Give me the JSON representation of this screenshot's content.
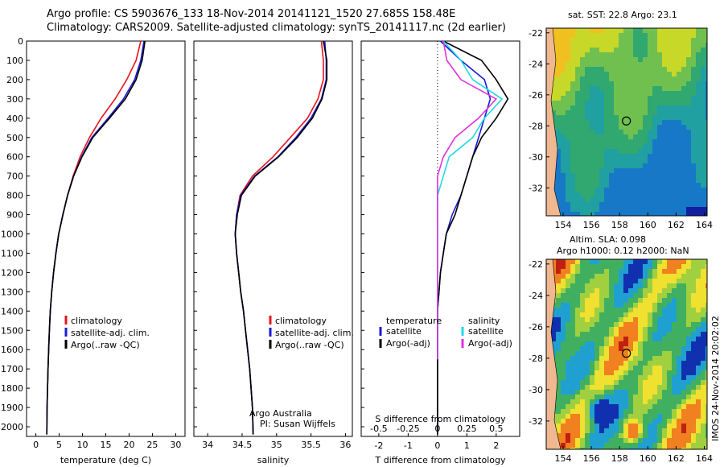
{
  "header": {
    "title_line1": "Argo profile: CS 5903676_133 18-Nov-2014 20141121_1520 27.685S 158.48E",
    "title_line2": "Climatology: CARS2009. Satellite-adjusted climatology: synTS_20141117.nc (2d earlier)"
  },
  "credit": {
    "line1": "Argo Australia",
    "line2": "PI: Susan Wijffels"
  },
  "stamp": "IMOS 24-Nov-2014 20:02:02",
  "colors": {
    "climatology": "#e8141c",
    "satellite": "#1a1ad8",
    "argo": "#000000",
    "salinity_satellite": "#20d8e8",
    "salinity_argo": "#e030e0"
  },
  "chart_data": [
    {
      "type": "line",
      "xlabel": "temperature (deg C)",
      "ylabel": "",
      "xlim": [
        -2,
        32
      ],
      "ylim": [
        2050,
        0
      ],
      "xticks": [
        "0",
        "5",
        "10",
        "15",
        "20",
        "25",
        "30"
      ],
      "yticks": [
        "0",
        "100",
        "200",
        "300",
        "400",
        "500",
        "600",
        "700",
        "800",
        "900",
        "1000",
        "1100",
        "1200",
        "1300",
        "1400",
        "1500",
        "1600",
        "1700",
        "1800",
        "1900",
        "2000"
      ],
      "legend": {
        "placement": "lower-middle",
        "entries": [
          "climatology",
          "satellite-adj. clim.",
          "Argo(..raw -QC)"
        ]
      },
      "series": [
        {
          "name": "climatology",
          "color": "#e8141c",
          "x": [
            22.5,
            21.5,
            19.5,
            17,
            14,
            11.5,
            9.5,
            8,
            6.8,
            5.8,
            4.9,
            4.3,
            3.8,
            3.4,
            3.1,
            2.9,
            2.75,
            2.6,
            2.5,
            2.4,
            2.35
          ],
          "y": [
            0,
            100,
            200,
            300,
            400,
            500,
            600,
            700,
            800,
            900,
            1000,
            1100,
            1200,
            1300,
            1400,
            1500,
            1600,
            1700,
            1800,
            1900,
            2040
          ]
        },
        {
          "name": "satellite-adj. clim.",
          "color": "#1a1ad8",
          "x": [
            23.2,
            22.5,
            21.2,
            18.8,
            15.5,
            12,
            9.8,
            8.1,
            6.8,
            5.8,
            4.9,
            4.3,
            3.8,
            3.4,
            3.1,
            2.9,
            2.75,
            2.6,
            2.5,
            2.4,
            2.35
          ],
          "y": [
            0,
            100,
            200,
            300,
            400,
            500,
            600,
            700,
            800,
            900,
            1000,
            1100,
            1200,
            1300,
            1400,
            1500,
            1600,
            1700,
            1800,
            1900,
            2040
          ]
        },
        {
          "name": "Argo(..raw -QC)",
          "color": "#000000",
          "x": [
            23.4,
            22.8,
            21.5,
            19.2,
            15.8,
            12.2,
            9.9,
            8.1,
            6.8,
            5.8,
            4.9,
            4.3,
            3.8,
            3.4,
            3.1,
            2.9,
            2.75,
            2.6,
            2.5,
            2.4,
            2.35
          ],
          "y": [
            0,
            100,
            200,
            300,
            400,
            500,
            600,
            700,
            800,
            900,
            1000,
            1100,
            1200,
            1300,
            1400,
            1500,
            1600,
            1700,
            1800,
            1900,
            2040
          ]
        }
      ]
    },
    {
      "type": "line",
      "xlabel": "salinity",
      "ylabel": "",
      "xlim": [
        33.8,
        36.1
      ],
      "ylim": [
        2050,
        0
      ],
      "xticks": [
        "34",
        "34.5",
        "35",
        "35.5",
        "36"
      ],
      "legend": {
        "placement": "lower-middle",
        "entries": [
          "climatology",
          "satellite-adj. clim.",
          "Argo(..raw -QC)"
        ]
      },
      "series": [
        {
          "name": "climatology",
          "color": "#e8141c",
          "x": [
            35.65,
            35.68,
            35.68,
            35.6,
            35.45,
            35.2,
            34.95,
            34.65,
            34.47,
            34.42,
            34.4,
            34.42,
            34.45,
            34.48,
            34.52,
            34.55,
            34.58,
            34.61,
            34.63,
            34.65,
            34.66
          ],
          "y": [
            0,
            100,
            200,
            300,
            400,
            500,
            600,
            700,
            800,
            900,
            1000,
            1100,
            1200,
            1300,
            1400,
            1500,
            1600,
            1700,
            1800,
            1900,
            2040
          ]
        },
        {
          "name": "satellite-adj. clim.",
          "color": "#1a1ad8",
          "x": [
            35.7,
            35.72,
            35.72,
            35.65,
            35.5,
            35.28,
            35.02,
            34.68,
            34.48,
            34.42,
            34.4,
            34.42,
            34.45,
            34.48,
            34.52,
            34.55,
            34.58,
            34.61,
            34.63,
            34.65,
            34.66
          ],
          "y": [
            0,
            100,
            200,
            300,
            400,
            500,
            600,
            700,
            800,
            900,
            1000,
            1100,
            1200,
            1300,
            1400,
            1500,
            1600,
            1700,
            1800,
            1900,
            2040
          ]
        },
        {
          "name": "Argo(..raw -QC)",
          "color": "#000000",
          "x": [
            35.68,
            35.73,
            35.73,
            35.66,
            35.52,
            35.3,
            35.03,
            34.69,
            34.49,
            34.43,
            34.4,
            34.42,
            34.45,
            34.48,
            34.52,
            34.55,
            34.58,
            34.61,
            34.63,
            34.65,
            34.66
          ],
          "y": [
            0,
            100,
            200,
            300,
            400,
            500,
            600,
            700,
            800,
            900,
            1000,
            1100,
            1200,
            1300,
            1400,
            1500,
            1600,
            1700,
            1800,
            1900,
            2040
          ]
        }
      ]
    },
    {
      "type": "line",
      "xlabel": "T difference from climatology",
      "xlabel_top": "S difference from climatology",
      "xlim": [
        -2.6,
        2.8
      ],
      "ylim": [
        2050,
        0
      ],
      "xticks": [
        "-2",
        "-1",
        "0",
        "1",
        "2"
      ],
      "xticks_top": [
        "-0.5",
        "-0.25",
        "0",
        "0.25",
        "0.5"
      ],
      "legend": {
        "placement": "lower",
        "entries": [
          "temperature",
          "satellite",
          "Argo(-adj)",
          "salinity",
          "satellite",
          "Argo(-adj)"
        ]
      },
      "series": [
        {
          "name": "temperature satellite",
          "color": "#1a1ad8",
          "x": [
            0.1,
            0.8,
            1.6,
            1.8,
            1.6,
            1.4,
            1.2,
            1.0,
            0.8,
            0.5,
            0.3,
            0.2,
            0.1,
            0.05,
            0,
            0,
            0,
            0,
            0,
            0,
            0
          ],
          "y": [
            0,
            100,
            200,
            300,
            400,
            500,
            600,
            700,
            800,
            900,
            1000,
            1100,
            1200,
            1300,
            1400,
            1500,
            1600,
            1700,
            1800,
            1900,
            2040
          ]
        },
        {
          "name": "temperature Argo(-adj)",
          "color": "#000000",
          "x": [
            0.2,
            1.5,
            2.0,
            2.4,
            2.0,
            1.5,
            1.2,
            1.0,
            0.8,
            0.6,
            0.3,
            0.2,
            0.1,
            0.05,
            0,
            0,
            0,
            0,
            0,
            0,
            0
          ],
          "y": [
            0,
            100,
            200,
            300,
            400,
            500,
            600,
            700,
            800,
            900,
            1000,
            1100,
            1200,
            1300,
            1400,
            1500,
            1600,
            1700,
            1800,
            1900,
            2040
          ]
        },
        {
          "name": "salinity satellite",
          "color": "#20d8e8",
          "x": [
            0.05,
            0.2,
            0.3,
            0.55,
            0.4,
            0.3,
            0.1,
            0.05,
            0,
            0,
            0,
            0,
            0,
            0,
            0
          ],
          "y": [
            0,
            100,
            200,
            300,
            400,
            500,
            600,
            700,
            800,
            900,
            1000,
            1100,
            1200,
            1400,
            1650
          ]
        },
        {
          "name": "salinity Argo(-adj)",
          "color": "#e030e0",
          "x": [
            0.05,
            0.08,
            0.2,
            0.5,
            0.35,
            0.15,
            0.05,
            0,
            0,
            0,
            0,
            0,
            0,
            0,
            0
          ],
          "y": [
            0,
            100,
            200,
            300,
            400,
            500,
            600,
            700,
            800,
            900,
            1000,
            1100,
            1200,
            1400,
            1650
          ]
        }
      ]
    },
    {
      "type": "heatmap",
      "title": "sat. SST: 22.8 Argo: 23.1",
      "xticks": [
        "154",
        "156",
        "158",
        "160",
        "162",
        "164"
      ],
      "yticks": [
        "-22",
        "-24",
        "-26",
        "-28",
        "-30",
        "-32"
      ],
      "xlim": [
        152.8,
        164.2
      ],
      "ylim": [
        -33.8,
        -21.7
      ]
    },
    {
      "type": "heatmap",
      "title": "Altim. SLA: 0.098",
      "subtitle": "Argo h1000: 0.12 h2000: NaN",
      "xticks": [
        "154",
        "156",
        "158",
        "160",
        "162",
        "164"
      ],
      "yticks": [
        "-22",
        "-24",
        "-26",
        "-28",
        "-30",
        "-32"
      ],
      "xlim": [
        152.8,
        164.2
      ],
      "ylim": [
        -33.8,
        -21.7
      ]
    }
  ]
}
